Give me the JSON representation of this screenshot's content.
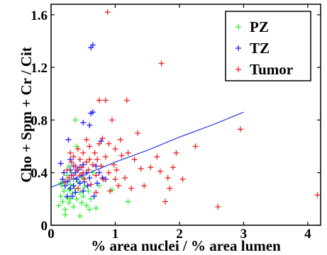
{
  "chart_data": {
    "type": "scatter",
    "xlabel": "% area nuclei / % area lumen",
    "ylabel": "Cho + Spm + Cr / Cit",
    "xlim": [
      0,
      4.2
    ],
    "ylim": [
      0,
      1.68
    ],
    "xticks": [
      "0",
      "1",
      "2",
      "3",
      "4"
    ],
    "yticks": [
      "0",
      "0.4",
      "0.8",
      "1.2",
      "1.6"
    ],
    "grid": false,
    "legend_position": "top-right",
    "series": [
      {
        "name": "PZ",
        "color": "#33ee33",
        "marker": "plus",
        "points": [
          [
            0.12,
            0.15
          ],
          [
            0.15,
            0.22
          ],
          [
            0.17,
            0.3
          ],
          [
            0.18,
            0.18
          ],
          [
            0.2,
            0.26
          ],
          [
            0.2,
            0.33
          ],
          [
            0.22,
            0.12
          ],
          [
            0.22,
            0.08
          ],
          [
            0.25,
            0.21
          ],
          [
            0.25,
            0.38
          ],
          [
            0.28,
            0.27
          ],
          [
            0.28,
            0.17
          ],
          [
            0.3,
            0.31
          ],
          [
            0.3,
            0.2
          ],
          [
            0.32,
            0.4
          ],
          [
            0.33,
            0.24
          ],
          [
            0.35,
            0.14
          ],
          [
            0.35,
            0.35
          ],
          [
            0.37,
            0.28
          ],
          [
            0.38,
            0.8
          ],
          [
            0.4,
            0.2
          ],
          [
            0.4,
            0.6
          ],
          [
            0.42,
            0.33
          ],
          [
            0.45,
            0.07
          ],
          [
            0.45,
            0.25
          ],
          [
            0.48,
            0.17
          ],
          [
            0.5,
            0.36
          ],
          [
            0.5,
            0.22
          ],
          [
            0.52,
            0.29
          ],
          [
            0.55,
            0.15
          ],
          [
            0.58,
            0.26
          ],
          [
            0.6,
            0.12
          ],
          [
            0.62,
            0.2
          ],
          [
            0.65,
            0.4
          ],
          [
            0.7,
            0.13
          ],
          [
            0.75,
            0.3
          ],
          [
            0.95,
            0.27
          ],
          [
            1.2,
            0.18
          ],
          [
            0.28,
            0.45
          ],
          [
            0.15,
            0.32
          ]
        ]
      },
      {
        "name": "TZ",
        "color": "#1a1aff",
        "marker": "plus",
        "points": [
          [
            0.15,
            0.47
          ],
          [
            0.18,
            0.35
          ],
          [
            0.2,
            0.4
          ],
          [
            0.22,
            0.3
          ],
          [
            0.25,
            0.33
          ],
          [
            0.27,
            0.65
          ],
          [
            0.3,
            0.42
          ],
          [
            0.3,
            0.28
          ],
          [
            0.32,
            0.38
          ],
          [
            0.35,
            0.45
          ],
          [
            0.35,
            0.3
          ],
          [
            0.38,
            0.25
          ],
          [
            0.38,
            0.4
          ],
          [
            0.4,
            0.35
          ],
          [
            0.42,
            0.42
          ],
          [
            0.45,
            0.44
          ],
          [
            0.45,
            0.32
          ],
          [
            0.48,
            0.38
          ],
          [
            0.5,
            0.26
          ],
          [
            0.5,
            0.46
          ],
          [
            0.5,
            0.78
          ],
          [
            0.52,
            0.33
          ],
          [
            0.55,
            0.4
          ],
          [
            0.57,
            0.3
          ],
          [
            0.6,
            0.36
          ],
          [
            0.6,
            0.76
          ],
          [
            0.62,
            1.35
          ],
          [
            0.62,
            0.85
          ],
          [
            0.65,
            1.37
          ],
          [
            0.65,
            0.86
          ],
          [
            0.67,
            0.22
          ],
          [
            0.7,
            0.45
          ],
          [
            0.72,
            0.32
          ],
          [
            0.75,
            0.4
          ],
          [
            0.78,
            0.64
          ],
          [
            0.8,
            0.36
          ],
          [
            0.85,
            0.35
          ],
          [
            0.25,
            0.22
          ],
          [
            0.33,
            0.22
          ],
          [
            0.3,
            0.5
          ]
        ]
      },
      {
        "name": "Tumor",
        "color": "#ee2222",
        "marker": "plus",
        "points": [
          [
            0.22,
            0.33
          ],
          [
            0.25,
            0.42
          ],
          [
            0.28,
            0.36
          ],
          [
            0.3,
            0.55
          ],
          [
            0.32,
            0.48
          ],
          [
            0.35,
            0.52
          ],
          [
            0.35,
            0.38
          ],
          [
            0.38,
            0.45
          ],
          [
            0.4,
            0.42
          ],
          [
            0.42,
            0.58
          ],
          [
            0.42,
            0.28
          ],
          [
            0.45,
            0.5
          ],
          [
            0.45,
            0.38
          ],
          [
            0.48,
            0.44
          ],
          [
            0.5,
            0.4
          ],
          [
            0.5,
            0.55
          ],
          [
            0.52,
            0.35
          ],
          [
            0.55,
            0.48
          ],
          [
            0.55,
            0.65
          ],
          [
            0.58,
            0.42
          ],
          [
            0.6,
            0.6
          ],
          [
            0.62,
            0.31
          ],
          [
            0.65,
            0.46
          ],
          [
            0.68,
            0.55
          ],
          [
            0.7,
            0.38
          ],
          [
            0.72,
            0.5
          ],
          [
            0.75,
            0.62
          ],
          [
            0.75,
            0.95
          ],
          [
            0.78,
            0.45
          ],
          [
            0.8,
            0.66
          ],
          [
            0.82,
            0.35
          ],
          [
            0.85,
            0.52
          ],
          [
            0.85,
            0.95
          ],
          [
            0.88,
            1.62
          ],
          [
            0.9,
            0.4
          ],
          [
            0.9,
            0.62
          ],
          [
            0.92,
            0.26
          ],
          [
            0.95,
            0.8
          ],
          [
            0.98,
            0.46
          ],
          [
            1.0,
            0.35
          ],
          [
            1.0,
            0.58
          ],
          [
            1.02,
            0.42
          ],
          [
            1.05,
            0.3
          ],
          [
            1.08,
            0.65
          ],
          [
            1.1,
            0.53
          ],
          [
            1.15,
            0.36
          ],
          [
            1.18,
            0.95
          ],
          [
            1.2,
            0.55
          ],
          [
            1.25,
            0.28
          ],
          [
            1.3,
            0.5
          ],
          [
            1.35,
            0.7
          ],
          [
            1.4,
            0.43
          ],
          [
            1.45,
            0.3
          ],
          [
            1.55,
            0.44
          ],
          [
            1.65,
            0.52
          ],
          [
            1.7,
            0.41
          ],
          [
            1.72,
            1.23
          ],
          [
            1.78,
            0.18
          ],
          [
            1.82,
            0.36
          ],
          [
            1.85,
            0.28
          ],
          [
            1.9,
            0.44
          ],
          [
            1.95,
            0.55
          ],
          [
            2.05,
            0.35
          ],
          [
            2.25,
            0.6
          ],
          [
            2.6,
            0.14
          ],
          [
            2.95,
            0.73
          ],
          [
            4.15,
            0.23
          ],
          [
            0.6,
            0.5
          ],
          [
            0.7,
            0.25
          ]
        ]
      }
    ],
    "fit_line": {
      "color": "#2a3adf",
      "points": [
        [
          0,
          0.29
        ],
        [
          0.5,
          0.38
        ],
        [
          1.0,
          0.48
        ],
        [
          1.5,
          0.57
        ],
        [
          2.0,
          0.67
        ],
        [
          2.5,
          0.76
        ],
        [
          3.0,
          0.86
        ]
      ]
    }
  }
}
